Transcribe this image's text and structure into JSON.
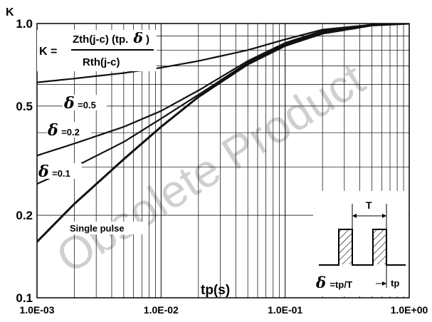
{
  "chart_data": {
    "type": "line",
    "x_scale": "log",
    "y_scale": "log",
    "xlim": [
      0.001,
      1
    ],
    "ylim": [
      0.1,
      1
    ],
    "x_tick_labels": [
      "1.0E-03",
      "1.0E-02",
      "1.0E-01",
      "1.0E+00"
    ],
    "y_tick_labels": [
      "0.1",
      "0.2",
      "0.5",
      "1.0"
    ],
    "ylabel": "K",
    "xlabel": "tp(s)",
    "grid": true,
    "series": [
      {
        "name": "Single pulse",
        "x": [
          0.001,
          0.002,
          0.005,
          0.01,
          0.02,
          0.05,
          0.1,
          0.2,
          0.5,
          1.0
        ],
        "y": [
          0.16,
          0.22,
          0.32,
          0.42,
          0.54,
          0.71,
          0.83,
          0.92,
          0.985,
          1.0
        ]
      },
      {
        "name": "δ=0.1",
        "x": [
          0.001,
          0.002,
          0.005,
          0.01,
          0.02,
          0.05,
          0.1,
          0.2,
          0.5,
          1.0
        ],
        "y": [
          0.26,
          0.3,
          0.37,
          0.45,
          0.55,
          0.72,
          0.84,
          0.93,
          0.99,
          1.0
        ]
      },
      {
        "name": "δ=0.2",
        "x": [
          0.001,
          0.002,
          0.005,
          0.01,
          0.02,
          0.05,
          0.1,
          0.2,
          0.5,
          1.0
        ],
        "y": [
          0.33,
          0.365,
          0.42,
          0.48,
          0.57,
          0.73,
          0.85,
          0.94,
          0.99,
          1.0
        ]
      },
      {
        "name": "δ=0.5",
        "x": [
          0.001,
          0.002,
          0.005,
          0.01,
          0.02,
          0.05,
          0.1,
          0.2,
          0.5,
          1.0
        ],
        "y": [
          0.61,
          0.63,
          0.66,
          0.69,
          0.73,
          0.8,
          0.875,
          0.95,
          0.99,
          1.0
        ]
      }
    ],
    "series_labels": [
      "Single pulse",
      "=0.1",
      "=0.2",
      "=0.5"
    ],
    "delta_symbol": "δ",
    "formula": {
      "lhs": "K =",
      "numerator_prefix": "Zth(j-c) (tp.",
      "numerator_symbol": "δ",
      "numerator_suffix": ")",
      "denominator": "Rth(j-c)"
    },
    "inset": {
      "period_label": "T",
      "duty_symbol": "δ",
      "duty_formula": "=tp/T",
      "pulse_width_label": "tp"
    },
    "watermark": "Obsolete Product"
  }
}
